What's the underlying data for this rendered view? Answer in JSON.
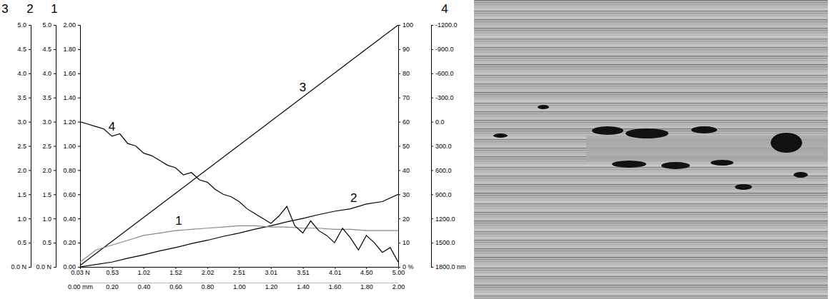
{
  "chart_data": {
    "type": "line",
    "xlim": [
      0,
      2
    ],
    "xticks": [
      {
        "value": 0,
        "label": "0.00 mm"
      },
      {
        "value": 0.2,
        "label": "0.20"
      },
      {
        "value": 0.4,
        "label": "0.40"
      },
      {
        "value": 0.6,
        "label": "0.60"
      },
      {
        "value": 0.8,
        "label": "0.80"
      },
      {
        "value": 1,
        "label": "1.00"
      },
      {
        "value": 1.2,
        "label": "1.20"
      },
      {
        "value": 1.4,
        "label": "1.40"
      },
      {
        "value": 1.6,
        "label": "1.60"
      },
      {
        "value": 1.8,
        "label": "1.80"
      },
      {
        "value": 2,
        "label": "2.00"
      }
    ],
    "x2lim": [
      0.03,
      5
    ],
    "x2ticks": [
      {
        "value": 0.03,
        "label": "0.03 N"
      },
      0.53,
      1.02,
      1.52,
      2.02,
      2.51,
      3.01,
      3.51,
      4.01,
      {
        "value": 4.5,
        "label": "4.50"
      },
      {
        "value": 5,
        "label": "5.00"
      }
    ],
    "y_axes": [
      {
        "label": "3",
        "ylim": [
          0,
          5
        ],
        "yticks": [
          {
            "value": 0,
            "label": "0.0 N"
          },
          0.5,
          {
            "value": 1,
            "label": "1.0"
          },
          1.5,
          {
            "value": 2,
            "label": "2.0"
          },
          2.5,
          {
            "value": 3,
            "label": "3.0"
          },
          3.5,
          {
            "value": 4,
            "label": "4.0"
          },
          4.5,
          {
            "value": 5,
            "label": "5.0"
          }
        ]
      },
      {
        "label": "2",
        "ylim": [
          0,
          5
        ],
        "yticks": [
          {
            "value": 0,
            "label": "0.0 N"
          },
          0.5,
          {
            "value": 1,
            "label": "1.0"
          },
          1.5,
          {
            "value": 2,
            "label": "2.0"
          },
          2.5,
          {
            "value": 3,
            "label": "3.0"
          },
          3.5,
          {
            "value": 4,
            "label": "4.0"
          },
          4.5,
          {
            "value": 5,
            "label": "5.0"
          }
        ]
      },
      {
        "label": "1",
        "ylim": [
          0,
          2
        ],
        "yticks": [
          {
            "value": 0,
            "label": "0.00"
          },
          {
            "value": 0.2,
            "label": "0.20"
          },
          {
            "value": 0.4,
            "label": "0.40"
          },
          {
            "value": 0.6,
            "label": "0.60"
          },
          {
            "value": 0.8,
            "label": "0.80"
          },
          {
            "value": 1,
            "label": "1.00"
          },
          {
            "value": 1.2,
            "label": "1.20"
          },
          {
            "value": 1.4,
            "label": "1.40"
          },
          {
            "value": 1.6,
            "label": "1.60"
          },
          {
            "value": 1.8,
            "label": "1.80"
          },
          {
            "value": 2,
            "label": "2.00"
          }
        ]
      },
      {
        "ylim": [
          0,
          100
        ],
        "yticks": [
          {
            "value": 0,
            "label": "0 %"
          },
          10,
          20,
          30,
          40,
          50,
          60,
          70,
          80,
          90,
          100
        ]
      },
      {
        "label": "4",
        "ylim": [
          1800,
          -1200
        ],
        "yticks": [
          {
            "value": -1200,
            "label": "-1200.0"
          },
          {
            "value": -900,
            "label": "-900.0"
          },
          {
            "value": -600,
            "label": "-600.0"
          },
          {
            "value": -300,
            "label": "-300.0"
          },
          {
            "value": 0,
            "label": "0.0"
          },
          {
            "value": 300,
            "label": "300.0"
          },
          {
            "value": 600,
            "label": "600.0"
          },
          {
            "value": 900,
            "label": "900.0"
          },
          {
            "value": 1200,
            "label": "1200.0"
          },
          {
            "value": 1500,
            "label": "1500.0"
          },
          {
            "value": 1800,
            "label": "1800.0 nm"
          }
        ]
      }
    ],
    "series": [
      {
        "name": "3",
        "color": "#000000",
        "axis": "3",
        "x": [
          0,
          2
        ],
        "values": [
          0.03,
          5
        ]
      },
      {
        "name": "2",
        "color": "#000000",
        "axis": "2",
        "x": [
          0,
          0.1,
          0.2,
          0.3,
          0.4,
          0.5,
          0.6,
          0.7,
          0.8,
          0.9,
          1.0,
          1.1,
          1.2,
          1.3,
          1.4,
          1.5,
          1.6,
          1.7,
          1.8,
          1.9,
          2.0
        ],
        "values": [
          0,
          0.05,
          0.1,
          0.18,
          0.25,
          0.33,
          0.4,
          0.48,
          0.55,
          0.63,
          0.7,
          0.78,
          0.85,
          0.93,
          1.0,
          1.08,
          1.15,
          1.2,
          1.3,
          1.35,
          1.5
        ]
      },
      {
        "name": "1",
        "color": "#888888",
        "axis": "1",
        "x": [
          0,
          0.1,
          0.2,
          0.3,
          0.4,
          0.5,
          0.6,
          0.7,
          0.8,
          0.9,
          1.0,
          1.1,
          1.2,
          1.3,
          1.4,
          1.5,
          1.6,
          1.7,
          1.8,
          1.9,
          2.0
        ],
        "values": [
          0.04,
          0.14,
          0.18,
          0.22,
          0.26,
          0.28,
          0.3,
          0.31,
          0.32,
          0.33,
          0.34,
          0.34,
          0.33,
          0.33,
          0.32,
          0.32,
          0.31,
          0.31,
          0.3,
          0.3,
          0.3
        ]
      },
      {
        "name": "4",
        "color": "#000000",
        "axis": "4",
        "x": [
          0,
          0.05,
          0.1,
          0.15,
          0.2,
          0.25,
          0.3,
          0.35,
          0.4,
          0.45,
          0.5,
          0.55,
          0.6,
          0.65,
          0.7,
          0.75,
          0.8,
          0.85,
          0.9,
          0.95,
          1.0,
          1.05,
          1.1,
          1.15,
          1.2,
          1.25,
          1.3,
          1.35,
          1.4,
          1.45,
          1.5,
          1.55,
          1.6,
          1.65,
          1.7,
          1.75,
          1.8,
          1.85,
          1.9,
          1.95,
          2.0
        ],
        "values": [
          0,
          30,
          60,
          90,
          180,
          150,
          270,
          300,
          390,
          420,
          480,
          540,
          570,
          660,
          630,
          720,
          750,
          840,
          900,
          930,
          990,
          1080,
          1140,
          1200,
          1260,
          1170,
          1050,
          1290,
          1380,
          1230,
          1350,
          1410,
          1500,
          1320,
          1440,
          1590,
          1410,
          1500,
          1620,
          1560,
          1740
        ]
      }
    ]
  }
}
